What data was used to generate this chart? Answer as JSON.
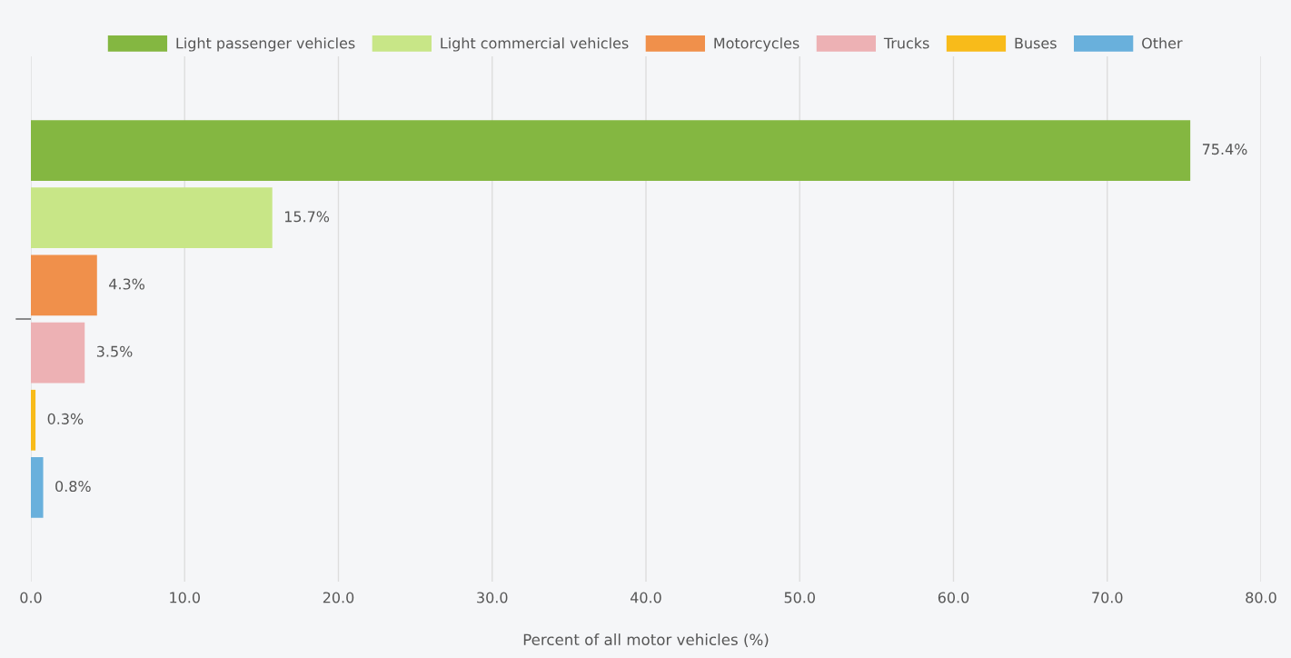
{
  "chart_data": {
    "type": "bar",
    "orientation": "horizontal",
    "categories": [
      null
    ],
    "series": [
      {
        "name": "Light passenger vehicles",
        "color": "#84b741",
        "values": [
          75.4
        ],
        "value_labels": [
          "75.4%"
        ]
      },
      {
        "name": "Light commercial vehicles",
        "color": "#c8e687",
        "values": [
          15.7
        ],
        "value_labels": [
          "15.7%"
        ]
      },
      {
        "name": "Motorcycles",
        "color": "#f0904b",
        "values": [
          4.3
        ],
        "value_labels": [
          "4.3%"
        ]
      },
      {
        "name": "Trucks",
        "color": "#edb1b4",
        "values": [
          3.5
        ],
        "value_labels": [
          "3.5%"
        ]
      },
      {
        "name": "Buses",
        "color": "#f8bb1a",
        "values": [
          0.3
        ],
        "value_labels": [
          "0.3%"
        ]
      },
      {
        "name": "Other",
        "color": "#69b0dc",
        "values": [
          0.8
        ],
        "value_labels": [
          "0.8%"
        ]
      }
    ],
    "xlabel": "Percent of all motor vehicles (%)",
    "xlim": [
      0,
      80
    ],
    "xticks": [
      {
        "value": 0,
        "label": "0.0"
      },
      {
        "value": 10,
        "label": "10.0"
      },
      {
        "value": 20,
        "label": "20.0"
      },
      {
        "value": 30,
        "label": "30.0"
      },
      {
        "value": 40,
        "label": "40.0"
      },
      {
        "value": 50,
        "label": "50.0"
      },
      {
        "value": 60,
        "label": "60.0"
      },
      {
        "value": 70,
        "label": "70.0"
      },
      {
        "value": 80,
        "label": "80.0"
      }
    ],
    "grid": "x",
    "legend": "top"
  }
}
